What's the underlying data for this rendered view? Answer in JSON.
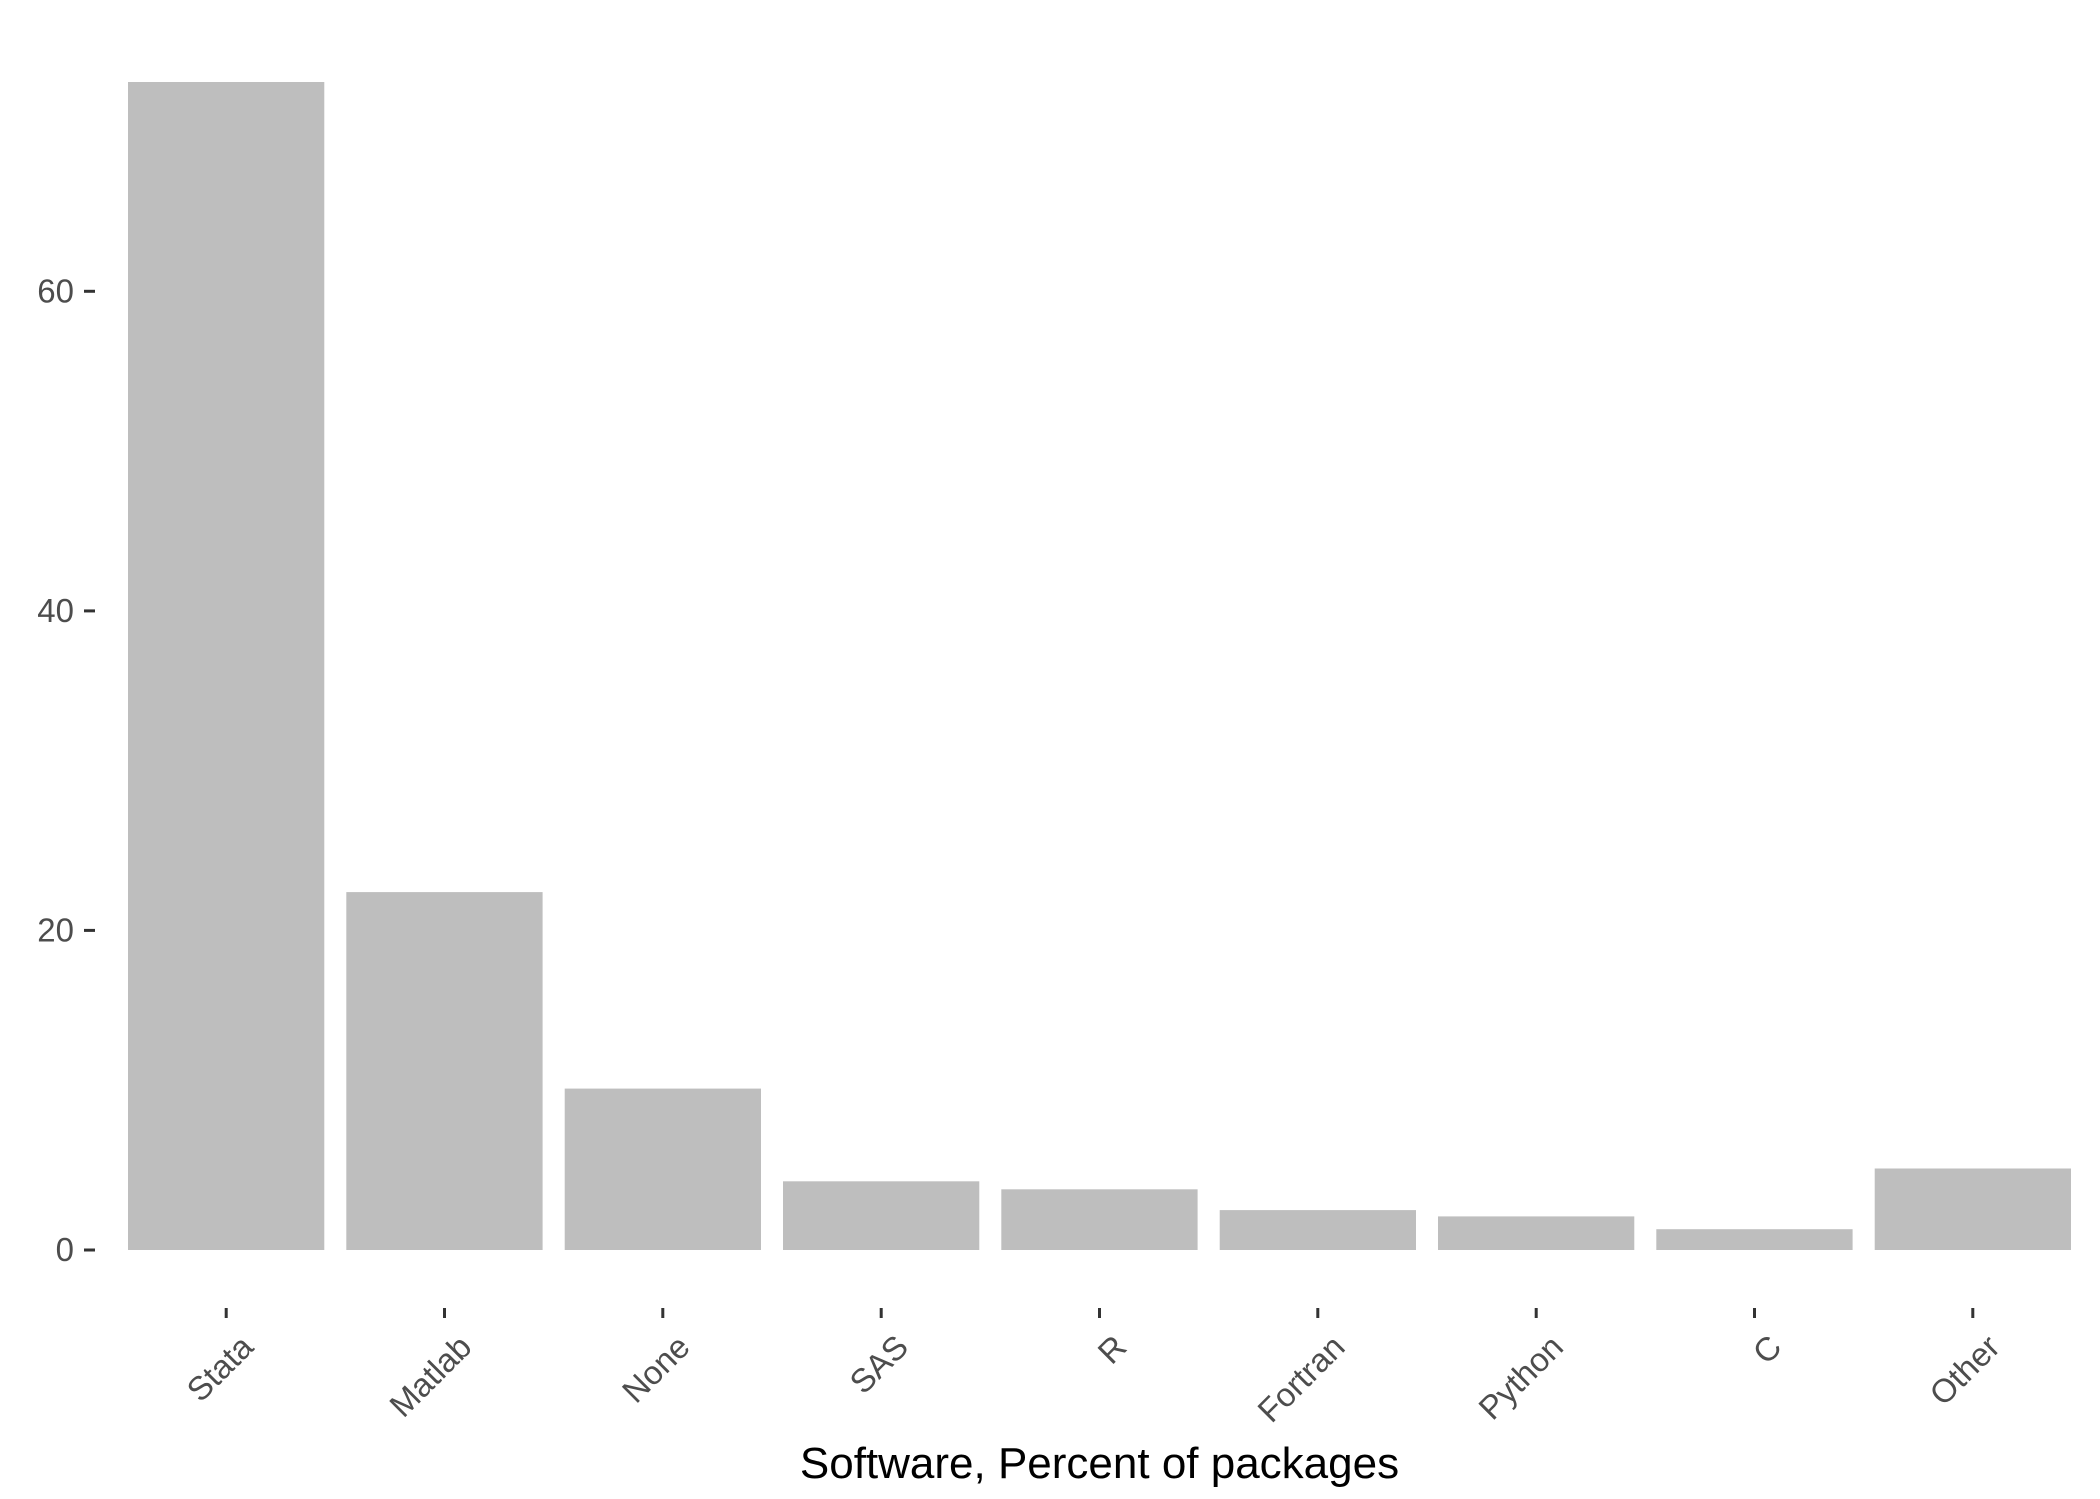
{
  "chart_data": {
    "type": "bar",
    "title": "",
    "xlabel": "Software, Percent of packages",
    "ylabel": "",
    "categories": [
      "Stata",
      "Matlab",
      "None",
      "SAS",
      "R",
      "Fortran",
      "Python",
      "C",
      "Other"
    ],
    "values": [
      73.1,
      22.4,
      10.1,
      4.3,
      3.8,
      2.5,
      2.1,
      1.3,
      5.1
    ],
    "ylim": [
      0,
      73.1
    ],
    "yticks": [
      0,
      20,
      40,
      60
    ],
    "grid": false,
    "legend": "none",
    "bar_color": "#bebebe"
  }
}
